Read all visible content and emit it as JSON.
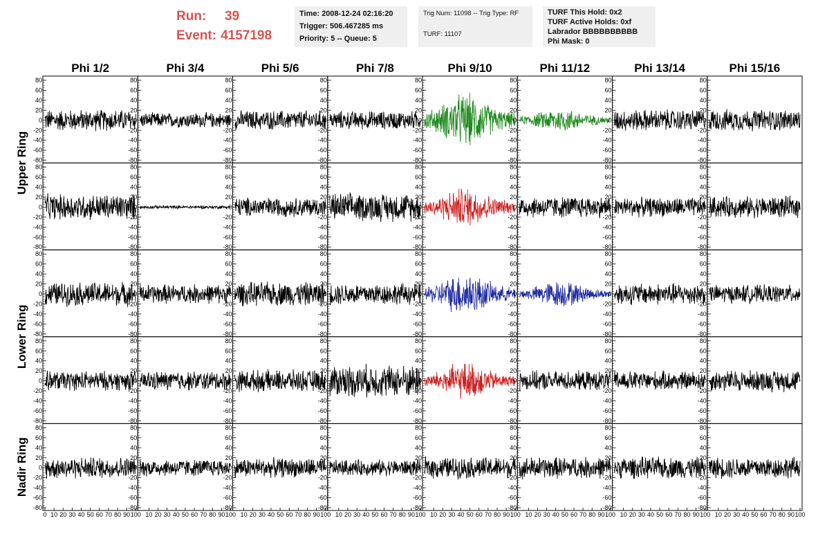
{
  "header": {
    "run_label": "Run:",
    "run_value": "39",
    "event_label": "Event:",
    "event_value": "4157198",
    "box1": [
      "Time: 2008-12-24 02:16:20",
      "Trigger: 506.467285 ms",
      "Priority: 5 -- Queue: 5"
    ],
    "box2": [
      "Trig Num: 11098 -- Trig Type: RF",
      "TURF: 11107"
    ],
    "box3": [
      "TURF This Hold: 0x2",
      "TURF Active Holds: 0xf",
      "Labrador BBBBBBBBBB",
      "Phi Mask: 0"
    ]
  },
  "columns": [
    "Phi 1/2",
    "Phi 3/4",
    "Phi 5/6",
    "Phi 7/8",
    "Phi 9/10",
    "Phi 11/12",
    "Phi 13/14",
    "Phi 15/16"
  ],
  "ring_labels": [
    "Upper Ring",
    "Lower Ring",
    "Nadir Ring"
  ],
  "colors": {
    "default_trace": "#000000",
    "green": "#1f8a1f",
    "red": "#cc2222",
    "blue": "#1f2aa0",
    "header_red": "#d9534f",
    "info_bg": "#efefef"
  },
  "chart_data": {
    "type": "line",
    "rows": 5,
    "cols": 8,
    "xlim": [
      0,
      100
    ],
    "ylim": [
      -80,
      80
    ],
    "y_ticks": [
      80,
      60,
      40,
      20,
      0,
      -20,
      -40,
      -60,
      -80
    ],
    "x_tick_labels": [
      "0",
      "10",
      "20",
      "30",
      "40",
      "50",
      "60",
      "70",
      "80",
      "90",
      "100"
    ],
    "panels": [
      {
        "row": 0,
        "col": 0,
        "color": "black",
        "amplitude": 20
      },
      {
        "row": 0,
        "col": 1,
        "color": "black",
        "amplitude": 14
      },
      {
        "row": 0,
        "col": 2,
        "color": "black",
        "amplitude": 18
      },
      {
        "row": 0,
        "col": 3,
        "color": "black",
        "amplitude": 17
      },
      {
        "row": 0,
        "col": 4,
        "color": "green",
        "amplitude": 40
      },
      {
        "row": 0,
        "col": 5,
        "color": "green",
        "amplitude": 18
      },
      {
        "row": 0,
        "col": 6,
        "color": "black",
        "amplitude": 20
      },
      {
        "row": 0,
        "col": 7,
        "color": "black",
        "amplitude": 20
      },
      {
        "row": 1,
        "col": 0,
        "color": "black",
        "amplitude": 24
      },
      {
        "row": 1,
        "col": 1,
        "color": "black",
        "amplitude": 3
      },
      {
        "row": 1,
        "col": 2,
        "color": "black",
        "amplitude": 18
      },
      {
        "row": 1,
        "col": 3,
        "color": "black",
        "amplitude": 26
      },
      {
        "row": 1,
        "col": 4,
        "color": "red",
        "amplitude": 30
      },
      {
        "row": 1,
        "col": 5,
        "color": "black",
        "amplitude": 20
      },
      {
        "row": 1,
        "col": 6,
        "color": "black",
        "amplitude": 18
      },
      {
        "row": 1,
        "col": 7,
        "color": "black",
        "amplitude": 20
      },
      {
        "row": 2,
        "col": 0,
        "color": "black",
        "amplitude": 22
      },
      {
        "row": 2,
        "col": 1,
        "color": "black",
        "amplitude": 18
      },
      {
        "row": 2,
        "col": 2,
        "color": "black",
        "amplitude": 22
      },
      {
        "row": 2,
        "col": 3,
        "color": "black",
        "amplitude": 20
      },
      {
        "row": 2,
        "col": 4,
        "color": "blue",
        "amplitude": 32
      },
      {
        "row": 2,
        "col": 5,
        "color": "blue",
        "amplitude": 20
      },
      {
        "row": 2,
        "col": 6,
        "color": "black",
        "amplitude": 20
      },
      {
        "row": 2,
        "col": 7,
        "color": "black",
        "amplitude": 17
      },
      {
        "row": 3,
        "col": 0,
        "color": "black",
        "amplitude": 18
      },
      {
        "row": 3,
        "col": 1,
        "color": "black",
        "amplitude": 18
      },
      {
        "row": 3,
        "col": 2,
        "color": "black",
        "amplitude": 20
      },
      {
        "row": 3,
        "col": 3,
        "color": "black",
        "amplitude": 30
      },
      {
        "row": 3,
        "col": 4,
        "color": "red",
        "amplitude": 28
      },
      {
        "row": 3,
        "col": 5,
        "color": "black",
        "amplitude": 18
      },
      {
        "row": 3,
        "col": 6,
        "color": "black",
        "amplitude": 18
      },
      {
        "row": 3,
        "col": 7,
        "color": "black",
        "amplitude": 20
      },
      {
        "row": 4,
        "col": 0,
        "color": "black",
        "amplitude": 20
      },
      {
        "row": 4,
        "col": 1,
        "color": "black",
        "amplitude": 16
      },
      {
        "row": 4,
        "col": 2,
        "color": "black",
        "amplitude": 18
      },
      {
        "row": 4,
        "col": 3,
        "color": "black",
        "amplitude": 15
      },
      {
        "row": 4,
        "col": 4,
        "color": "black",
        "amplitude": 20
      },
      {
        "row": 4,
        "col": 5,
        "color": "black",
        "amplitude": 20
      },
      {
        "row": 4,
        "col": 6,
        "color": "black",
        "amplitude": 20
      },
      {
        "row": 4,
        "col": 7,
        "color": "black",
        "amplitude": 20
      }
    ]
  }
}
